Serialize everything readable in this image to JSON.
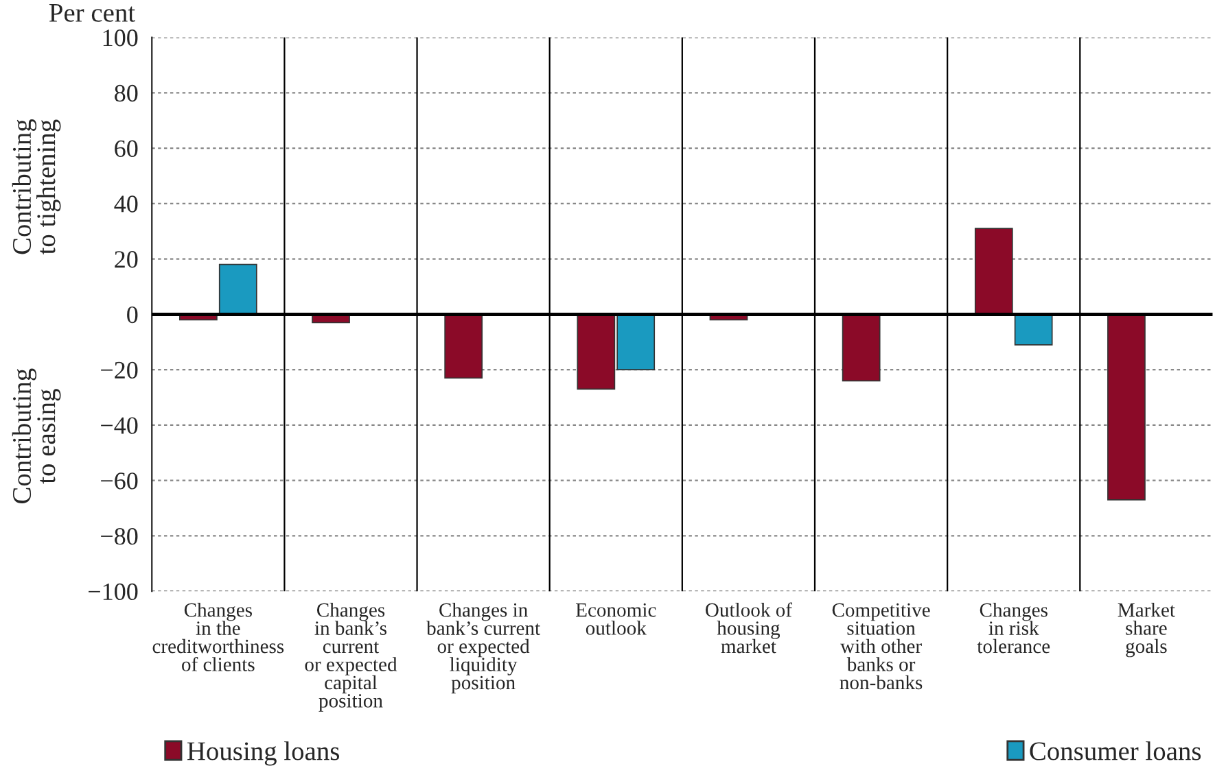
{
  "chart_data": {
    "type": "bar",
    "ylabel": "Per cent",
    "annotations": [
      "Contributing\nto tightening",
      "Contributing\nto easing"
    ],
    "categories": [
      "Changes\nin the\ncreditworthiness\nof clients",
      "Changes\nin bank’s\ncurrent\nor expected\ncapital\nposition",
      "Changes in\nbank’s current\nor expected\nliquidity\nposition",
      "Economic\noutlook",
      "Outlook of\nhousing\nmarket",
      "Competitive\nsituation\nwith other\nbanks or\nnon-banks",
      "Changes\nin risk\ntolerance",
      "Market\nshare\ngoals"
    ],
    "series": [
      {
        "name": "Housing loans",
        "color": "#8b0a28",
        "values": [
          -2,
          -3,
          -23,
          -27,
          -2,
          -24,
          31,
          -67
        ]
      },
      {
        "name": "Consumer loans",
        "color": "#1a9ac0",
        "values": [
          18,
          null,
          null,
          -20,
          null,
          null,
          -11,
          null
        ]
      }
    ],
    "ylim": [
      -100,
      100
    ],
    "yticks": [
      {
        "value": -100,
        "label": "−100"
      },
      {
        "value": -80,
        "label": "−80"
      },
      {
        "value": -60,
        "label": "−60"
      },
      {
        "value": -40,
        "label": "−40"
      },
      {
        "value": -20,
        "label": "−20"
      },
      0,
      20,
      40,
      60,
      80,
      100
    ],
    "ref_lines": [
      {
        "axis": "y",
        "value": 0,
        "color": "#000000"
      }
    ],
    "grid": true,
    "legend": "bottom"
  }
}
